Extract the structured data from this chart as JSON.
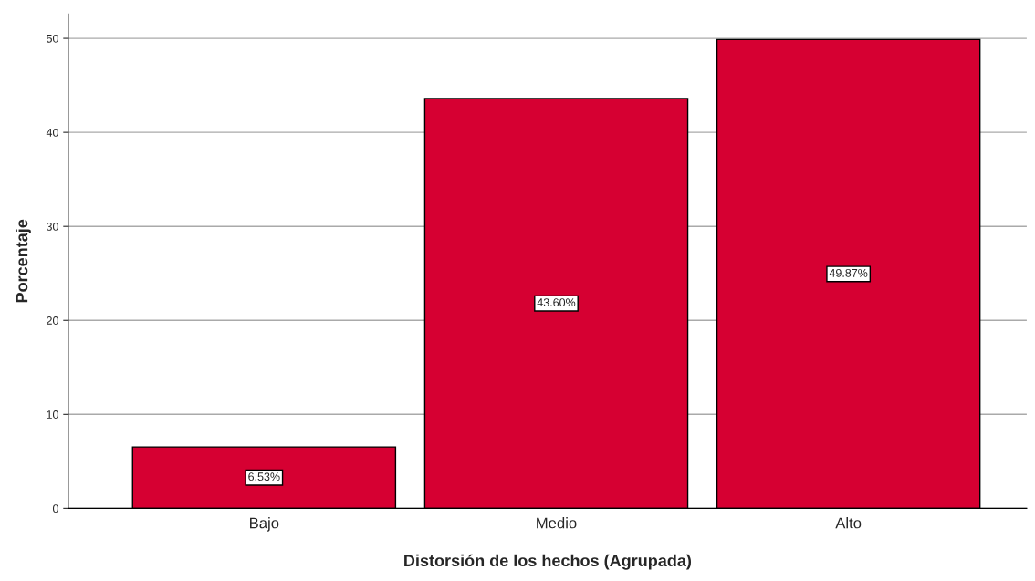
{
  "chart_data": {
    "type": "bar",
    "xlabel": "Distorsión de los hechos (Agrupada)",
    "ylabel": "Porcentaje",
    "categories": [
      "Bajo",
      "Medio",
      "Alto"
    ],
    "values": [
      6.53,
      43.6,
      49.87
    ],
    "value_labels": [
      "6.53%",
      "43.60%",
      "49.87%"
    ],
    "color": "#d60032",
    "ylim": [
      0,
      52.6
    ],
    "yticks": [
      0,
      10,
      20,
      30,
      40,
      50
    ],
    "grid": "y",
    "legend": false
  }
}
